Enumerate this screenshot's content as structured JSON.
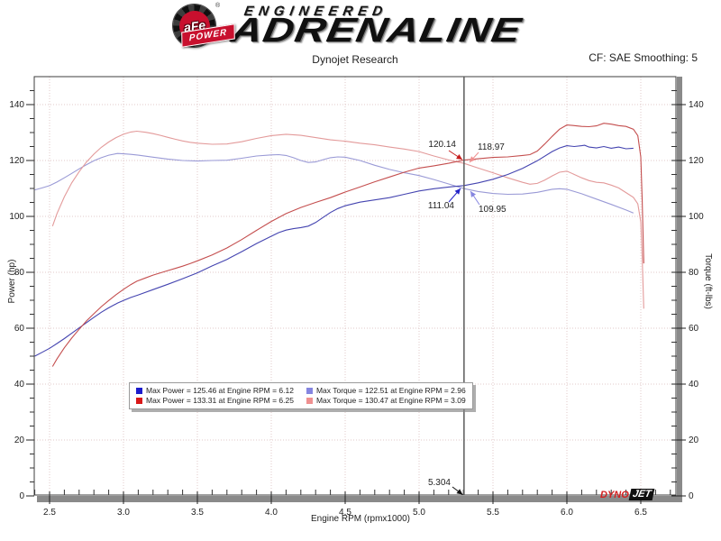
{
  "header": {
    "brand": {
      "emblem_text": "aFe",
      "emblem_reg": "®",
      "emblem_banner": "POWER",
      "wordmark_line1": "ENGINEERED",
      "wordmark_line2": "ADRENALINE"
    },
    "subtitle": "Dynojet Research",
    "correction_note": "CF: SAE Smoothing: 5"
  },
  "watermark": {
    "dyno": "DYNO",
    "jet": "JET"
  },
  "chart_data": {
    "type": "line",
    "title": "Dynojet Research",
    "xlabel": "Engine RPM (rpmx1000)",
    "ylabel_left": "Power (hp)",
    "ylabel_right": "Torque (ft-lbs)",
    "grid": "dotted",
    "x_axis_range": [
      2.4,
      6.74
    ],
    "y_axis_range": [
      0,
      150
    ],
    "x_ticks": [
      "2.5",
      "3.0",
      "3.5",
      "4.0",
      "4.5",
      "5.0",
      "5.5",
      "6.0",
      "6.5"
    ],
    "x_minor_step": 0.1,
    "y_ticks": [
      0,
      20,
      40,
      60,
      80,
      100,
      120,
      140
    ],
    "y_minor_step": 5,
    "legend": [
      {
        "swatch": "#1c1ccc",
        "label": "Max Power = 125.46 at Engine RPM = 6.12"
      },
      {
        "swatch": "#8585e0",
        "label": "Max Torque = 122.51 at Engine RPM = 2.96"
      },
      {
        "swatch": "#d91818",
        "label": "Max Power = 133.31 at Engine RPM = 6.25"
      },
      {
        "swatch": "#ef9090",
        "label": "Max Torque = 130.47 at Engine RPM = 3.09"
      }
    ],
    "cursor": {
      "x_value": 5.304,
      "x_label": "5.304",
      "callouts": [
        {
          "text": "120.14",
          "value": 120.14,
          "color": "#c61c1c",
          "side": "left"
        },
        {
          "text": "118.97",
          "value": 118.97,
          "color": "#ef9090",
          "side": "right"
        },
        {
          "text": "111.04",
          "value": 111.04,
          "color": "#2424c8",
          "side": "left"
        },
        {
          "text": "109.95",
          "value": 109.95,
          "color": "#8585e0",
          "side": "right"
        }
      ]
    },
    "series": [
      {
        "id": "torque-stock",
        "color": "#9a9ad6",
        "unit": "ft-lbs",
        "max": {
          "value": 122.51,
          "rpm": 2.96
        },
        "points": [
          [
            2.4,
            109.5
          ],
          [
            2.45,
            110.2
          ],
          [
            2.5,
            111
          ],
          [
            2.55,
            112.3
          ],
          [
            2.6,
            113.8
          ],
          [
            2.65,
            115.4
          ],
          [
            2.7,
            117
          ],
          [
            2.75,
            118.5
          ],
          [
            2.8,
            119.9
          ],
          [
            2.85,
            121
          ],
          [
            2.9,
            121.9
          ],
          [
            2.96,
            122.51
          ],
          [
            3.0,
            122.4
          ],
          [
            3.05,
            122.2
          ],
          [
            3.1,
            121.9
          ],
          [
            3.2,
            121.2
          ],
          [
            3.3,
            120.5
          ],
          [
            3.4,
            120
          ],
          [
            3.5,
            119.8
          ],
          [
            3.6,
            120
          ],
          [
            3.7,
            120.1
          ],
          [
            3.8,
            120.8
          ],
          [
            3.9,
            121.6
          ],
          [
            4.0,
            122
          ],
          [
            4.05,
            122.1
          ],
          [
            4.1,
            121.8
          ],
          [
            4.15,
            121
          ],
          [
            4.2,
            120
          ],
          [
            4.25,
            119.3
          ],
          [
            4.3,
            119.5
          ],
          [
            4.35,
            120.3
          ],
          [
            4.4,
            121
          ],
          [
            4.45,
            121.3
          ],
          [
            4.5,
            121.2
          ],
          [
            4.6,
            120
          ],
          [
            4.7,
            118.3
          ],
          [
            4.8,
            116.8
          ],
          [
            4.9,
            115.6
          ],
          [
            5.0,
            114.6
          ],
          [
            5.1,
            113.2
          ],
          [
            5.2,
            111.6
          ],
          [
            5.304,
            109.95
          ],
          [
            5.4,
            108.9
          ],
          [
            5.5,
            108.2
          ],
          [
            5.6,
            107.9
          ],
          [
            5.7,
            108
          ],
          [
            5.8,
            108.6
          ],
          [
            5.9,
            109.7
          ],
          [
            5.95,
            109.9
          ],
          [
            6.0,
            109.7
          ],
          [
            6.1,
            108.1
          ],
          [
            6.2,
            106.2
          ],
          [
            6.3,
            104.3
          ],
          [
            6.4,
            102.3
          ],
          [
            6.45,
            101.2
          ]
        ]
      },
      {
        "id": "torque-tuned",
        "color": "#e39a9a",
        "unit": "ft-lbs",
        "max": {
          "value": 130.47,
          "rpm": 3.09
        },
        "points": [
          [
            2.52,
            96.5
          ],
          [
            2.55,
            101
          ],
          [
            2.6,
            107
          ],
          [
            2.65,
            112
          ],
          [
            2.7,
            116
          ],
          [
            2.75,
            119.5
          ],
          [
            2.8,
            122.3
          ],
          [
            2.85,
            124.7
          ],
          [
            2.9,
            126.6
          ],
          [
            2.95,
            128.2
          ],
          [
            3.0,
            129.4
          ],
          [
            3.05,
            130.2
          ],
          [
            3.09,
            130.47
          ],
          [
            3.15,
            130.1
          ],
          [
            3.2,
            129.6
          ],
          [
            3.25,
            129
          ],
          [
            3.3,
            128.3
          ],
          [
            3.35,
            127.6
          ],
          [
            3.4,
            127
          ],
          [
            3.45,
            126.5
          ],
          [
            3.5,
            126.2
          ],
          [
            3.6,
            125.8
          ],
          [
            3.7,
            125.9
          ],
          [
            3.8,
            126.7
          ],
          [
            3.9,
            127.9
          ],
          [
            4.0,
            128.9
          ],
          [
            4.1,
            129.4
          ],
          [
            4.2,
            129
          ],
          [
            4.3,
            128.2
          ],
          [
            4.4,
            127.4
          ],
          [
            4.5,
            126.9
          ],
          [
            4.6,
            126.2
          ],
          [
            4.7,
            125.6
          ],
          [
            4.8,
            124.8
          ],
          [
            4.9,
            124.1
          ],
          [
            5.0,
            123.2
          ],
          [
            5.1,
            121.6
          ],
          [
            5.2,
            120.2
          ],
          [
            5.304,
            118.97
          ],
          [
            5.4,
            117.3
          ],
          [
            5.5,
            115.6
          ],
          [
            5.6,
            113.8
          ],
          [
            5.7,
            112.2
          ],
          [
            5.75,
            111.5
          ],
          [
            5.8,
            111.8
          ],
          [
            5.85,
            113
          ],
          [
            5.9,
            114.5
          ],
          [
            5.95,
            115.8
          ],
          [
            6.0,
            116.2
          ],
          [
            6.05,
            115
          ],
          [
            6.1,
            113.8
          ],
          [
            6.15,
            112.8
          ],
          [
            6.2,
            112.2
          ],
          [
            6.25,
            112
          ],
          [
            6.3,
            111.2
          ],
          [
            6.35,
            110.2
          ],
          [
            6.4,
            108.5
          ],
          [
            6.45,
            106.8
          ],
          [
            6.48,
            104.5
          ],
          [
            6.5,
            98
          ],
          [
            6.51,
            85
          ],
          [
            6.52,
            67
          ]
        ]
      },
      {
        "id": "power-stock",
        "color": "#4444b0",
        "unit": "hp",
        "max": {
          "value": 125.46,
          "rpm": 6.12
        },
        "points": [
          [
            2.4,
            50
          ],
          [
            2.45,
            51.4
          ],
          [
            2.5,
            52.8
          ],
          [
            2.55,
            54.5
          ],
          [
            2.6,
            56.3
          ],
          [
            2.65,
            58.2
          ],
          [
            2.7,
            60.1
          ],
          [
            2.75,
            62
          ],
          [
            2.8,
            63.9
          ],
          [
            2.85,
            65.7
          ],
          [
            2.9,
            67.3
          ],
          [
            2.96,
            69
          ],
          [
            3.0,
            69.9
          ],
          [
            3.05,
            71
          ],
          [
            3.1,
            71.9
          ],
          [
            3.2,
            73.8
          ],
          [
            3.3,
            75.7
          ],
          [
            3.4,
            77.7
          ],
          [
            3.5,
            79.8
          ],
          [
            3.6,
            82.3
          ],
          [
            3.7,
            84.6
          ],
          [
            3.8,
            87.4
          ],
          [
            3.9,
            90.3
          ],
          [
            4.0,
            92.9
          ],
          [
            4.05,
            94.2
          ],
          [
            4.1,
            95.1
          ],
          [
            4.15,
            95.6
          ],
          [
            4.2,
            96
          ],
          [
            4.25,
            96.5
          ],
          [
            4.3,
            97.8
          ],
          [
            4.35,
            99.6
          ],
          [
            4.4,
            101.4
          ],
          [
            4.45,
            102.8
          ],
          [
            4.5,
            103.8
          ],
          [
            4.6,
            105.1
          ],
          [
            4.7,
            105.9
          ],
          [
            4.8,
            106.7
          ],
          [
            4.9,
            107.9
          ],
          [
            5.0,
            109.1
          ],
          [
            5.1,
            109.9
          ],
          [
            5.2,
            110.5
          ],
          [
            5.304,
            111.04
          ],
          [
            5.4,
            112
          ],
          [
            5.5,
            113.3
          ],
          [
            5.6,
            115
          ],
          [
            5.7,
            117.2
          ],
          [
            5.8,
            119.9
          ],
          [
            5.9,
            123.2
          ],
          [
            5.95,
            124.5
          ],
          [
            6.0,
            125.3
          ],
          [
            6.05,
            125
          ],
          [
            6.1,
            125.3
          ],
          [
            6.12,
            125.46
          ],
          [
            6.15,
            124.8
          ],
          [
            6.2,
            124.5
          ],
          [
            6.25,
            125
          ],
          [
            6.3,
            124.4
          ],
          [
            6.35,
            124.8
          ],
          [
            6.4,
            124.2
          ],
          [
            6.45,
            124.4
          ]
        ]
      },
      {
        "id": "power-tuned",
        "color": "#c44e4e",
        "unit": "hp",
        "max": {
          "value": 133.31,
          "rpm": 6.25
        },
        "points": [
          [
            2.52,
            46.3
          ],
          [
            2.55,
            49
          ],
          [
            2.6,
            53
          ],
          [
            2.65,
            56.5
          ],
          [
            2.7,
            59.6
          ],
          [
            2.75,
            62.6
          ],
          [
            2.8,
            65.2
          ],
          [
            2.85,
            67.7
          ],
          [
            2.9,
            69.9
          ],
          [
            2.95,
            72
          ],
          [
            3.0,
            73.9
          ],
          [
            3.05,
            75.6
          ],
          [
            3.09,
            76.8
          ],
          [
            3.15,
            78
          ],
          [
            3.2,
            79
          ],
          [
            3.25,
            79.8
          ],
          [
            3.3,
            80.6
          ],
          [
            3.35,
            81.4
          ],
          [
            3.4,
            82.2
          ],
          [
            3.45,
            83.1
          ],
          [
            3.5,
            84.1
          ],
          [
            3.6,
            86.2
          ],
          [
            3.7,
            88.7
          ],
          [
            3.8,
            91.7
          ],
          [
            3.9,
            95
          ],
          [
            4.0,
            98.2
          ],
          [
            4.1,
            101
          ],
          [
            4.2,
            103.2
          ],
          [
            4.3,
            105
          ],
          [
            4.4,
            106.7
          ],
          [
            4.5,
            108.7
          ],
          [
            4.6,
            110.5
          ],
          [
            4.7,
            112.4
          ],
          [
            4.8,
            114.1
          ],
          [
            4.9,
            115.8
          ],
          [
            5.0,
            117.3
          ],
          [
            5.1,
            118.1
          ],
          [
            5.2,
            119
          ],
          [
            5.304,
            120.14
          ],
          [
            5.4,
            120.6
          ],
          [
            5.5,
            121.1
          ],
          [
            5.6,
            121.3
          ],
          [
            5.7,
            121.8
          ],
          [
            5.75,
            122.1
          ],
          [
            5.8,
            123.4
          ],
          [
            5.85,
            125.9
          ],
          [
            5.9,
            128.6
          ],
          [
            5.95,
            131.2
          ],
          [
            6.0,
            132.7
          ],
          [
            6.05,
            132.5
          ],
          [
            6.1,
            132.2
          ],
          [
            6.15,
            132.1
          ],
          [
            6.2,
            132.4
          ],
          [
            6.25,
            133.31
          ],
          [
            6.3,
            133
          ],
          [
            6.35,
            132.5
          ],
          [
            6.4,
            132.2
          ],
          [
            6.45,
            131.2
          ],
          [
            6.48,
            128.9
          ],
          [
            6.5,
            121.3
          ],
          [
            6.51,
            105.3
          ],
          [
            6.52,
            83.2
          ]
        ]
      }
    ]
  }
}
